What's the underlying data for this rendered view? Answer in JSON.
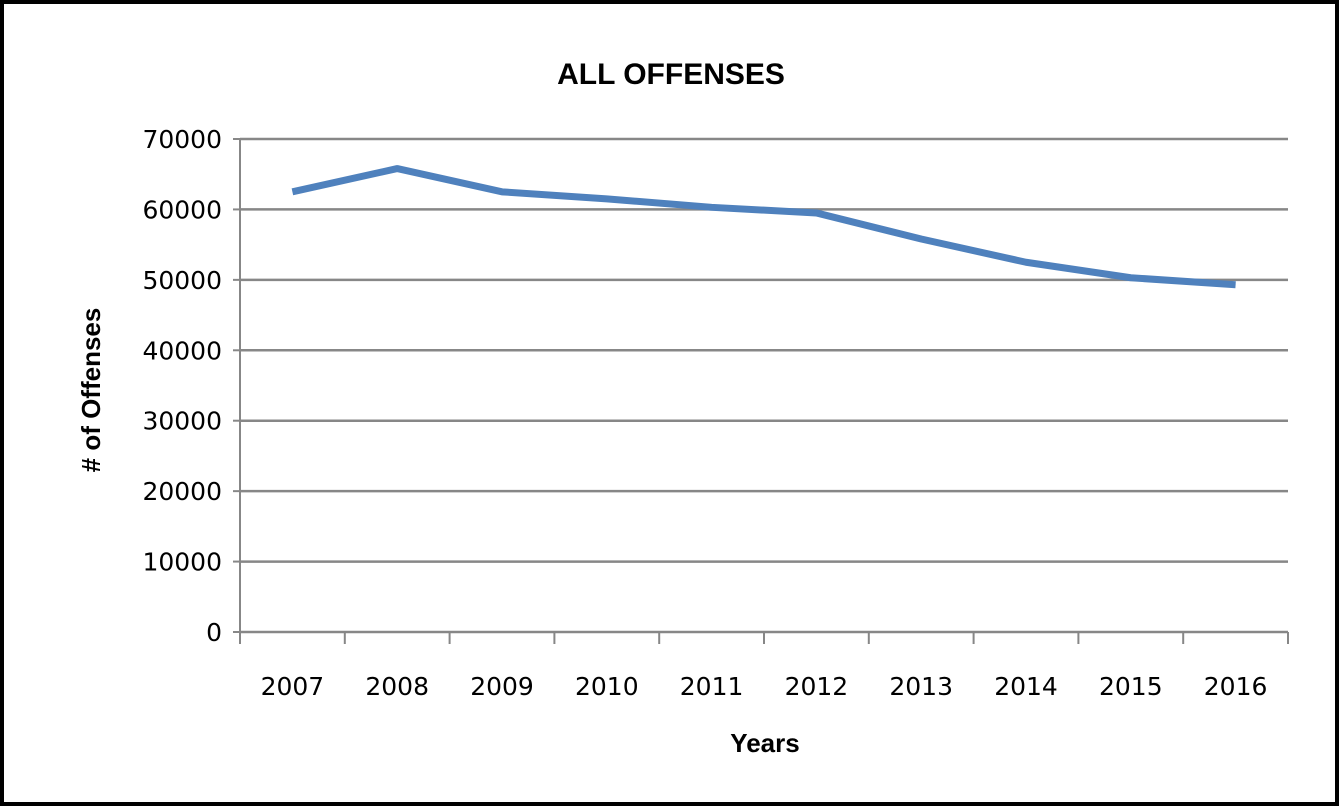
{
  "chart_data": {
    "type": "line",
    "title": "ALL OFFENSES",
    "xlabel": "Years",
    "ylabel": "# of Offenses",
    "categories": [
      "2007",
      "2008",
      "2009",
      "2010",
      "2011",
      "2012",
      "2013",
      "2014",
      "2015",
      "2016"
    ],
    "series": [
      {
        "values": [
          62500,
          65800,
          62500,
          61500,
          60300,
          59500,
          55800,
          52500,
          50300,
          49300
        ],
        "color": "#4F81BD"
      }
    ],
    "ylim": [
      0,
      70000
    ],
    "yticks": [
      "0",
      "10000",
      "20000",
      "30000",
      "40000",
      "50000",
      "60000",
      "70000"
    ],
    "grid": true,
    "legend": "none",
    "colors": {
      "gridline": "#878787",
      "axis": "#878787",
      "border": "#000000"
    }
  }
}
